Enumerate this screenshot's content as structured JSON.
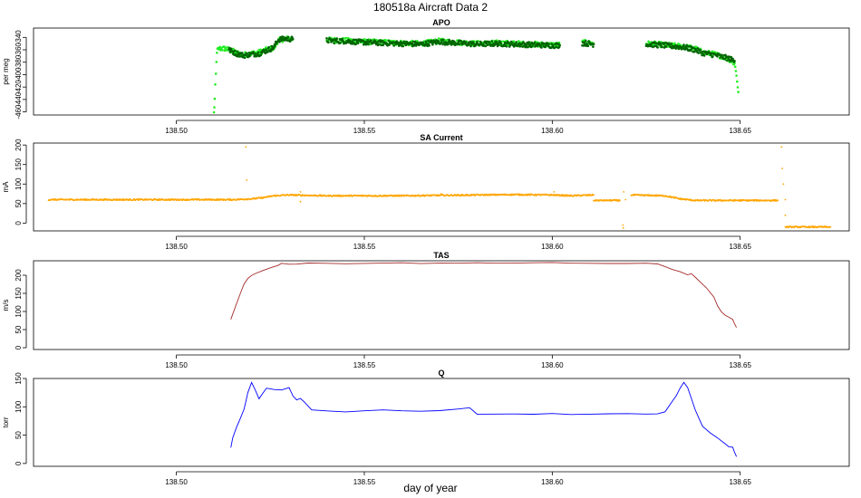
{
  "figure": {
    "title": "180518a   Aircraft Data 2",
    "xlabel": "day of year"
  },
  "chart_data": [
    {
      "type": "scatter",
      "title": "APO",
      "ylabel": "per meg",
      "xlim": [
        138.462,
        138.679
      ],
      "ylim": [
        -465,
        -325
      ],
      "yticks": [
        -340,
        -360,
        -380,
        -400,
        -420,
        -440,
        -460
      ],
      "xticks": [
        "138.50",
        "138.55",
        "138.60",
        "138.65"
      ],
      "xtick_values": [
        138.5,
        138.55,
        138.6,
        138.65
      ],
      "series": [
        {
          "color": "#22ee22",
          "segments": [
            [
              [
                138.51,
                -462
              ],
              [
                138.5102,
                -440
              ],
              [
                138.5105,
                -400
              ],
              [
                138.5108,
                -362
              ],
              [
                138.5115,
                -358
              ],
              [
                138.513,
                -358
              ],
              [
                138.514,
                -360
              ],
              [
                138.515,
                -362
              ],
              [
                138.516,
                -365
              ],
              [
                138.518,
                -368
              ],
              [
                138.52,
                -366
              ],
              [
                138.522,
                -364
              ],
              [
                138.523,
                -362
              ],
              [
                138.524,
                -360
              ],
              [
                138.526,
                -357
              ],
              [
                138.527,
                -345
              ],
              [
                138.529,
                -342
              ],
              [
                138.531,
                -343
              ]
            ],
            [
              [
                138.54,
                -344
              ],
              [
                138.545,
                -345
              ],
              [
                138.55,
                -347
              ],
              [
                138.555,
                -348
              ],
              [
                138.56,
                -349
              ],
              [
                138.565,
                -350
              ],
              [
                138.57,
                -346
              ],
              [
                138.575,
                -348
              ],
              [
                138.58,
                -350
              ],
              [
                138.585,
                -349
              ],
              [
                138.59,
                -350
              ],
              [
                138.595,
                -351
              ],
              [
                138.6,
                -352
              ],
              [
                138.602,
                -352
              ]
            ],
            [
              [
                138.608,
                -348
              ],
              [
                138.611,
                -350
              ]
            ],
            [
              [
                138.625,
                -350
              ],
              [
                138.63,
                -352
              ],
              [
                138.635,
                -355
              ],
              [
                138.638,
                -358
              ],
              [
                138.64,
                -364
              ],
              [
                138.643,
                -367
              ],
              [
                138.645,
                -370
              ],
              [
                138.647,
                -375
              ],
              [
                138.6485,
                -382
              ],
              [
                138.649,
                -400
              ],
              [
                138.6495,
                -428
              ]
            ]
          ]
        },
        {
          "color": "#006400",
          "segments": [
            [
              [
                138.514,
                -360
              ],
              [
                138.516,
                -366
              ],
              [
                138.518,
                -369
              ],
              [
                138.52,
                -367
              ],
              [
                138.522,
                -366
              ],
              [
                138.524,
                -361
              ],
              [
                138.526,
                -356
              ],
              [
                138.527,
                -344
              ],
              [
                138.529,
                -342
              ],
              [
                138.531,
                -343
              ]
            ],
            [
              [
                138.54,
                -345
              ],
              [
                138.545,
                -346
              ],
              [
                138.55,
                -348
              ],
              [
                138.555,
                -349
              ],
              [
                138.56,
                -350
              ],
              [
                138.565,
                -351
              ],
              [
                138.57,
                -347
              ],
              [
                138.575,
                -349
              ],
              [
                138.58,
                -351
              ],
              [
                138.585,
                -350
              ],
              [
                138.59,
                -351
              ],
              [
                138.595,
                -352
              ],
              [
                138.6,
                -353
              ],
              [
                138.602,
                -353
              ]
            ],
            [
              [
                138.608,
                -349
              ],
              [
                138.611,
                -351
              ]
            ],
            [
              [
                138.625,
                -351
              ],
              [
                138.63,
                -353
              ],
              [
                138.635,
                -356
              ],
              [
                138.638,
                -360
              ],
              [
                138.64,
                -365
              ],
              [
                138.643,
                -368
              ],
              [
                138.645,
                -371
              ],
              [
                138.647,
                -374
              ],
              [
                138.6485,
                -378
              ]
            ]
          ]
        }
      ]
    },
    {
      "type": "scatter",
      "title": "SA Current",
      "ylabel": "mA",
      "xlim": [
        138.462,
        138.679
      ],
      "ylim": [
        -20,
        205
      ],
      "yticks": [
        0,
        50,
        100,
        150,
        200
      ],
      "xticks": [
        "138.50",
        "138.55",
        "138.60",
        "138.65"
      ],
      "xtick_values": [
        138.5,
        138.55,
        138.6,
        138.65
      ],
      "series": [
        {
          "color": "#ffa500",
          "segments": [
            [
              [
                138.466,
                60
              ],
              [
                138.48,
                60
              ],
              [
                138.5,
                60
              ],
              [
                138.515,
                60
              ],
              [
                138.52,
                62
              ],
              [
                138.523,
                65
              ],
              [
                138.526,
                70
              ],
              [
                138.53,
                72
              ],
              [
                138.54,
                70
              ],
              [
                138.55,
                70
              ],
              [
                138.56,
                70
              ],
              [
                138.57,
                71
              ],
              [
                138.58,
                72
              ],
              [
                138.59,
                73
              ],
              [
                138.6,
                72
              ],
              [
                138.605,
                70
              ],
              [
                138.611,
                72
              ]
            ],
            [
              [
                138.611,
                58
              ],
              [
                138.618,
                58
              ]
            ],
            [
              [
                138.621,
                72
              ],
              [
                138.63,
                70
              ],
              [
                138.634,
                62
              ],
              [
                138.638,
                58
              ],
              [
                138.645,
                58
              ],
              [
                138.65,
                58
              ],
              [
                138.655,
                58
              ],
              [
                138.66,
                58
              ]
            ],
            [
              [
                138.662,
                -10
              ],
              [
                138.668,
                -10
              ],
              [
                138.674,
                -10
              ]
            ]
          ],
          "spikes": [
            [
              138.533,
              80
            ],
            [
              138.533,
              55
            ],
            [
              138.5185,
              195
            ],
            [
              138.5187,
              110
            ],
            [
              138.6188,
              -5
            ],
            [
              138.6189,
              -12
            ],
            [
              138.619,
              80
            ],
            [
              138.6195,
              60
            ],
            [
              138.661,
              195
            ],
            [
              138.6612,
              140
            ],
            [
              138.6615,
              100
            ],
            [
              138.662,
              60
            ],
            [
              138.662,
              20
            ],
            [
              138.6005,
              80
            ],
            [
              138.5705,
              75
            ]
          ]
        }
      ]
    },
    {
      "type": "line",
      "title": "TAS",
      "ylabel": "m/s",
      "xlim": [
        138.462,
        138.679
      ],
      "ylim": [
        -5,
        240
      ],
      "yticks": [
        0,
        50,
        100,
        150,
        200
      ],
      "xticks": [
        "138.50",
        "138.55",
        "138.60",
        "138.65"
      ],
      "xtick_values": [
        138.5,
        138.55,
        138.6,
        138.65
      ],
      "series": [
        {
          "color": "#a52a2a",
          "points": [
            [
              138.5145,
              78
            ],
            [
              138.515,
              92
            ],
            [
              138.516,
              120
            ],
            [
              138.517,
              150
            ],
            [
              138.518,
              175
            ],
            [
              138.519,
              190
            ],
            [
              138.52,
              200
            ],
            [
              138.521,
              205
            ],
            [
              138.523,
              212
            ],
            [
              138.525,
              220
            ],
            [
              138.527,
              226
            ],
            [
              138.528,
              233
            ],
            [
              138.53,
              230
            ],
            [
              138.532,
              232
            ],
            [
              138.535,
              233
            ],
            [
              138.54,
              234
            ],
            [
              138.545,
              232
            ],
            [
              138.55,
              234
            ],
            [
              138.555,
              233
            ],
            [
              138.56,
              233
            ],
            [
              138.565,
              232
            ],
            [
              138.57,
              233
            ],
            [
              138.575,
              234
            ],
            [
              138.58,
              234
            ],
            [
              138.585,
              233
            ],
            [
              138.59,
              233
            ],
            [
              138.595,
              234
            ],
            [
              138.6,
              234
            ],
            [
              138.605,
              233
            ],
            [
              138.61,
              233
            ],
            [
              138.615,
              232
            ],
            [
              138.62,
              232
            ],
            [
              138.625,
              233
            ],
            [
              138.628,
              232
            ],
            [
              138.63,
              225
            ],
            [
              138.632,
              215
            ],
            [
              138.634,
              210
            ],
            [
              138.636,
              200
            ],
            [
              138.637,
              205
            ],
            [
              138.638,
              195
            ],
            [
              138.64,
              175
            ],
            [
              138.641,
              165
            ],
            [
              138.643,
              140
            ],
            [
              138.644,
              115
            ],
            [
              138.645,
              100
            ],
            [
              138.646,
              90
            ],
            [
              138.647,
              85
            ],
            [
              138.648,
              78
            ],
            [
              138.6485,
              65
            ],
            [
              138.649,
              55
            ]
          ]
        }
      ]
    },
    {
      "type": "line",
      "title": "Q",
      "ylabel": "torr",
      "xlim": [
        138.462,
        138.679
      ],
      "ylim": [
        -5,
        150
      ],
      "yticks": [
        0,
        50,
        100,
        150
      ],
      "xticks": [
        "138.50",
        "138.55",
        "138.60",
        "138.65"
      ],
      "xtick_values": [
        138.5,
        138.55,
        138.6,
        138.65
      ],
      "series": [
        {
          "color": "#0000ff",
          "points": [
            [
              138.5145,
              28
            ],
            [
              138.515,
              45
            ],
            [
              138.516,
              65
            ],
            [
              138.517,
              80
            ],
            [
              138.518,
              95
            ],
            [
              138.5185,
              110
            ],
            [
              138.519,
              125
            ],
            [
              138.52,
              143
            ],
            [
              138.521,
              130
            ],
            [
              138.522,
              115
            ],
            [
              138.523,
              125
            ],
            [
              138.524,
              133
            ],
            [
              138.526,
              131
            ],
            [
              138.528,
              130
            ],
            [
              138.53,
              133
            ],
            [
              138.531,
              120
            ],
            [
              138.532,
              112
            ],
            [
              138.533,
              115
            ],
            [
              138.534,
              108
            ],
            [
              138.536,
              95
            ],
            [
              138.54,
              92
            ],
            [
              138.545,
              92
            ],
            [
              138.55,
              93
            ],
            [
              138.555,
              95
            ],
            [
              138.56,
              93
            ],
            [
              138.565,
              92
            ],
            [
              138.57,
              94
            ],
            [
              138.575,
              97
            ],
            [
              138.578,
              98
            ],
            [
              138.58,
              88
            ],
            [
              138.585,
              87
            ],
            [
              138.59,
              87
            ],
            [
              138.595,
              87
            ],
            [
              138.6,
              88
            ],
            [
              138.605,
              87
            ],
            [
              138.61,
              87
            ],
            [
              138.615,
              88
            ],
            [
              138.62,
              88
            ],
            [
              138.625,
              88
            ],
            [
              138.628,
              87
            ],
            [
              138.63,
              92
            ],
            [
              138.632,
              110
            ],
            [
              138.633,
              120
            ],
            [
              138.634,
              133
            ],
            [
              138.635,
              143
            ],
            [
              138.636,
              135
            ],
            [
              138.637,
              115
            ],
            [
              138.638,
              95
            ],
            [
              138.639,
              80
            ],
            [
              138.64,
              65
            ],
            [
              138.642,
              55
            ],
            [
              138.644,
              45
            ],
            [
              138.646,
              35
            ],
            [
              138.647,
              30
            ],
            [
              138.648,
              28
            ],
            [
              138.6485,
              20
            ],
            [
              138.649,
              12
            ]
          ]
        }
      ]
    }
  ]
}
